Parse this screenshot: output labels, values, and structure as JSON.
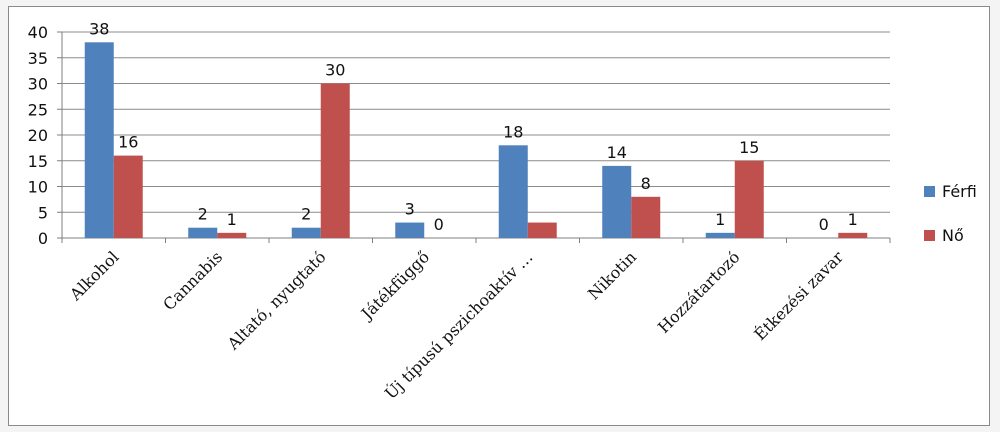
{
  "chart_data": {
    "type": "bar",
    "categories": [
      "Alkohol",
      "Cannabis",
      "Altató, nyugtató",
      "Játékfüggő",
      "Új típusú pszichoaktív …",
      "Nikotin",
      "Hozzátartozó",
      "Étkezési zavar"
    ],
    "series": [
      {
        "name": "Férfi",
        "values": [
          38,
          2,
          2,
          3,
          18,
          14,
          1,
          0
        ],
        "color": "#4f81bd"
      },
      {
        "name": "Nő",
        "values": [
          16,
          1,
          30,
          0,
          3,
          8,
          15,
          1
        ],
        "color": "#c0504d"
      }
    ],
    "data_labels": [
      [
        "38",
        "2",
        "2",
        "3",
        "18",
        "14",
        "1",
        "0"
      ],
      [
        "16",
        "1",
        "30",
        "0",
        "",
        "8",
        "15",
        "1"
      ]
    ],
    "yticks": [
      "0",
      "5",
      "10",
      "15",
      "20",
      "25",
      "30",
      "35",
      "40"
    ],
    "ylim": [
      0,
      40
    ],
    "title": "",
    "xlabel": "",
    "ylabel": "",
    "grid": true,
    "legend_position": "right"
  }
}
